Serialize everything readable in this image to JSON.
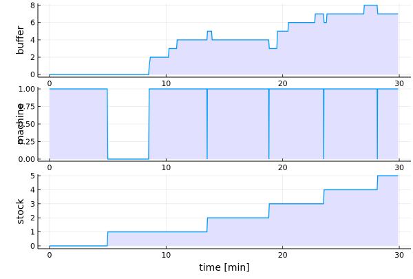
{
  "chart_data": [
    {
      "type": "area",
      "ylabel": "buffer",
      "xlabel": "",
      "xlim": [
        -1,
        31
      ],
      "ylim": [
        -0.3,
        8.2
      ],
      "xticks": [
        0,
        10,
        20,
        30
      ],
      "yticks": [
        0,
        2,
        4,
        6,
        8
      ],
      "grid": true,
      "line_color": "#009AFA",
      "fill_color": "#E1E1FF",
      "x": [
        0,
        8.5,
        8.55,
        8.65,
        10.2,
        10.25,
        10.9,
        10.95,
        13.5,
        13.55,
        13.9,
        13.95,
        18.8,
        18.85,
        19.5,
        19.55,
        20.45,
        20.5,
        22.75,
        22.8,
        23.5,
        23.55,
        23.75,
        23.8,
        26.95,
        27.0,
        28.1,
        28.15,
        29.9
      ],
      "y": [
        0,
        0,
        1,
        2,
        2,
        3,
        3,
        4,
        4,
        5,
        5,
        4,
        4,
        3,
        3,
        5,
        5,
        6,
        6,
        7,
        7,
        6,
        6,
        7,
        7,
        8,
        8,
        7,
        7
      ]
    },
    {
      "type": "area",
      "ylabel": "machine",
      "xlabel": "",
      "xlim": [
        -1,
        31
      ],
      "ylim": [
        -0.03,
        1.03
      ],
      "xticks": [
        0,
        10,
        20,
        30
      ],
      "yticks": [
        0.0,
        0.25,
        0.5,
        0.75,
        1.0
      ],
      "ytick_labels": [
        "0.00",
        "0.25",
        "0.50",
        "0.75",
        "1.00"
      ],
      "grid": true,
      "line_color": "#009AFA",
      "fill_color": "#E1E1FF",
      "x": [
        0,
        4.95,
        5.0,
        8.5,
        8.55,
        13.5,
        13.52,
        13.54,
        18.8,
        18.82,
        18.84,
        23.5,
        23.52,
        23.54,
        28.1,
        28.12,
        28.14,
        29.9
      ],
      "y": [
        1,
        1,
        0,
        0,
        1,
        1,
        0,
        1,
        1,
        0,
        1,
        1,
        0,
        1,
        1,
        0,
        1,
        1
      ]
    },
    {
      "type": "area",
      "ylabel": "stock",
      "xlabel": "time [min]",
      "xlim": [
        -1,
        31
      ],
      "ylim": [
        -0.2,
        5.1
      ],
      "xticks": [
        0,
        10,
        20,
        30
      ],
      "yticks": [
        0,
        1,
        2,
        3,
        4,
        5
      ],
      "grid": true,
      "line_color": "#009AFA",
      "fill_color": "#E1E1FF",
      "x": [
        0,
        4.95,
        5.0,
        13.5,
        13.55,
        18.8,
        18.85,
        23.5,
        23.55,
        28.1,
        28.15,
        29.9
      ],
      "y": [
        0,
        0,
        1,
        1,
        2,
        2,
        3,
        3,
        4,
        4,
        5,
        5
      ]
    }
  ]
}
